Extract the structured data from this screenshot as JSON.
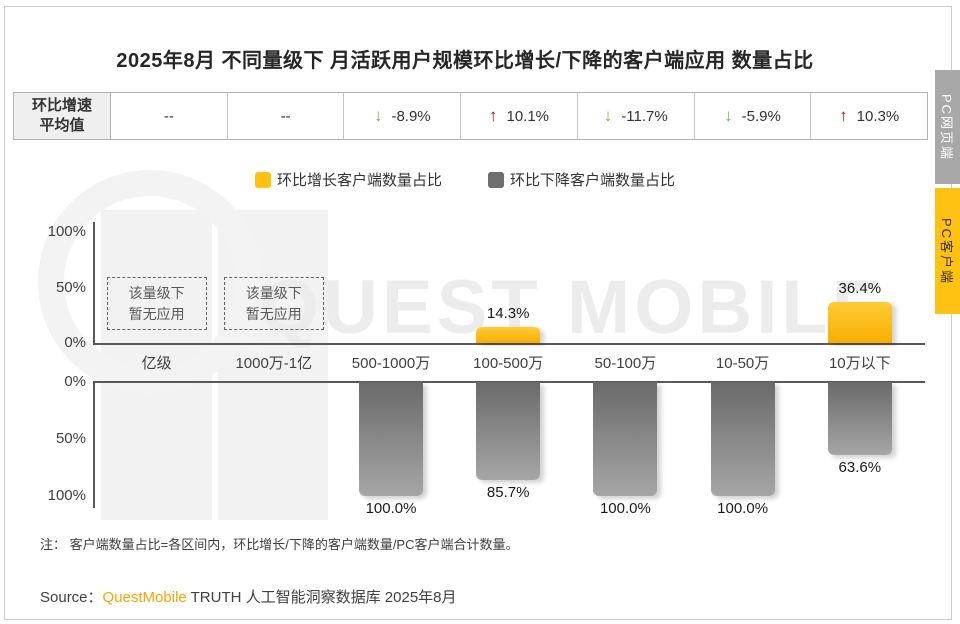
{
  "title": "2025年8月 不同量级下 月活跃用户规模环比增长/下降的客户端应用 数量占比",
  "side_tabs": [
    {
      "label": "PC网页端",
      "active": false
    },
    {
      "label": "PC客户端",
      "active": true
    }
  ],
  "summary_table": {
    "header_line1": "环比增速",
    "header_line2": "平均值",
    "cells": [
      {
        "text": "--",
        "arrow": "none"
      },
      {
        "text": "--",
        "arrow": "none"
      },
      {
        "text": "-8.9%",
        "arrow": "down"
      },
      {
        "text": "10.1%",
        "arrow": "up"
      },
      {
        "text": "-11.7%",
        "arrow": "down"
      },
      {
        "text": "-5.9%",
        "arrow": "down"
      },
      {
        "text": "10.3%",
        "arrow": "up"
      }
    ]
  },
  "icons": {
    "arrow_up": "↑",
    "arrow_down": "↓"
  },
  "legend": [
    {
      "label": "环比增长客户端数量占比",
      "color": "#ffc112"
    },
    {
      "label": "环比下降客户端数量占比",
      "color": "#6e6e6e"
    }
  ],
  "watermark": {
    "text": "QUEST MOBILE"
  },
  "no_app_box": {
    "line1": "该量级下",
    "line2": "暂无应用"
  },
  "note": "注： 客户端数量占比=各区间内，环比增长/下降的客户端数量/PC客户端合计数量。",
  "source": {
    "prefix": "Source：",
    "brand": "QuestMobile",
    "suffix": " TRUTH 人工智能洞察数据库 2025年8月"
  },
  "colors": {
    "growth_bar": "#ffc112",
    "decline_bar": "#7d7d7d",
    "up_arrow": "#e60000",
    "down_arrow": "#7db343",
    "active_tab": "#ffc112",
    "inactive_tab": "#a8a8a8"
  },
  "chart_data": {
    "type": "bar",
    "title": "2025年8月 不同量级下 月活跃用户规模环比增长/下降的客户端应用 数量占比",
    "categories": [
      "亿级",
      "1000万-1亿",
      "500-1000万",
      "100-500万",
      "50-100万",
      "10-50万",
      "10万以下"
    ],
    "series": [
      {
        "name": "环比增长客户端数量占比",
        "values": [
          null,
          null,
          0,
          14.3,
          0,
          0,
          36.4
        ],
        "labels": [
          "",
          "",
          "",
          "14.3%",
          "",
          "",
          "36.4%"
        ],
        "color": "#ffc112",
        "axis": "upper"
      },
      {
        "name": "环比下降客户端数量占比",
        "values": [
          null,
          null,
          100.0,
          85.7,
          100.0,
          100.0,
          63.6
        ],
        "labels": [
          "",
          "",
          "100.0%",
          "85.7%",
          "100.0%",
          "100.0%",
          "63.6%"
        ],
        "color": "#7d7d7d",
        "axis": "lower"
      }
    ],
    "growth_rate_avg_row": [
      "--",
      "--",
      "-8.9%",
      "10.1%",
      "-11.7%",
      "-5.9%",
      "10.3%"
    ],
    "no_data_categories": [
      "亿级",
      "1000万-1亿"
    ],
    "upper_axis_ticks": [
      "100%",
      "50%",
      "0%"
    ],
    "lower_axis_ticks": [
      "0%",
      "50%",
      "100%"
    ],
    "ylim": [
      0,
      100
    ],
    "grid": false,
    "legend_position": "top"
  }
}
